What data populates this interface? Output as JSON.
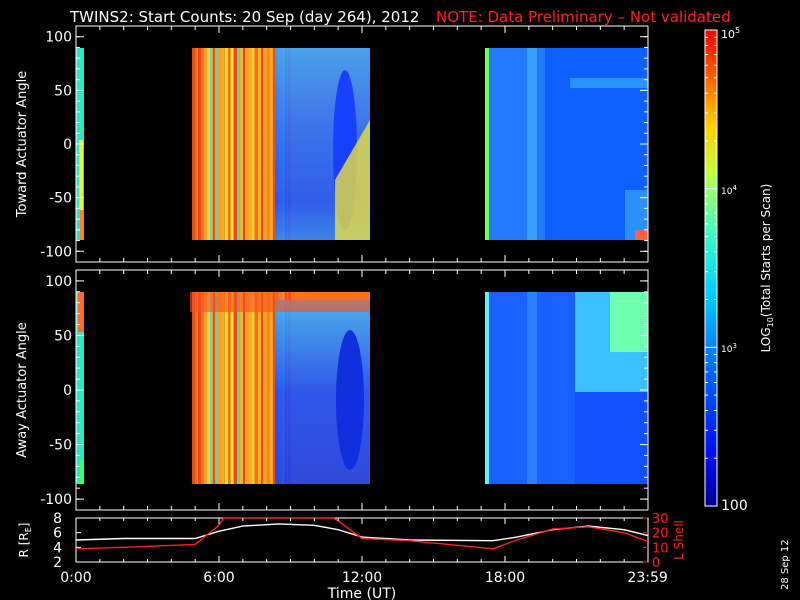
{
  "header": {
    "title": "TWINS2: Start Counts: 20 Sep (day 264), 2012",
    "note": "NOTE: Data Preliminary – Not validated",
    "note_color": "#ff2020"
  },
  "side_date": "28 Sep 12",
  "chart_data": [
    {
      "type": "heatmap",
      "panel": "top",
      "ylabel": "Toward Actuator Angle",
      "ylim": [
        -110,
        110
      ],
      "yticks": [
        "100",
        "50",
        "0",
        "-50",
        "-100"
      ],
      "xlim_hours": [
        0,
        24
      ],
      "data_intervals_hours": [
        [
          -0.2,
          0.35
        ],
        [
          4.8,
          12.7
        ],
        [
          17.7,
          24.0
        ]
      ]
    },
    {
      "type": "heatmap",
      "panel": "middle",
      "ylabel": "Away Actuator Angle",
      "ylim": [
        -110,
        110
      ],
      "yticks": [
        "100",
        "50",
        "0",
        "-50",
        "-100"
      ],
      "xlim_hours": [
        0,
        24
      ],
      "data_intervals_hours": [
        [
          -0.2,
          0.35
        ],
        [
          4.8,
          12.7
        ],
        [
          17.7,
          24.0
        ]
      ]
    },
    {
      "type": "line",
      "panel": "orbit",
      "ylabel_left": "R [R",
      "ylabel_left_sub": "E",
      "ylabel_left_close": "]",
      "ylabel_right": "L Shell",
      "left_ylim": [
        2,
        8
      ],
      "left_yticks": [
        "8",
        "6",
        "4",
        "2"
      ],
      "right_ylim": [
        0,
        30
      ],
      "right_yticks": [
        "30",
        "20",
        "10",
        "0"
      ],
      "series": [
        {
          "color": "#ffffff",
          "x": [
            0,
            2,
            5,
            6,
            7,
            8.5,
            10,
            11,
            12,
            14,
            17.5,
            18.5,
            20,
            21.5,
            23,
            24
          ],
          "values": [
            5.0,
            5.2,
            5.2,
            6.2,
            6.9,
            7.2,
            7.0,
            6.4,
            5.4,
            5.0,
            4.9,
            5.4,
            6.4,
            6.9,
            6.4,
            5.6
          ]
        },
        {
          "color": "#ff2020",
          "x": [
            0,
            2,
            5,
            6,
            6.2,
            10.8,
            11,
            12,
            14,
            17.5,
            18.5,
            20,
            21.5,
            23,
            24
          ],
          "values": [
            3.8,
            4.0,
            4.4,
            7.0,
            8.3,
            8.3,
            7.6,
            5.2,
            4.9,
            3.8,
            5.0,
            6.5,
            6.8,
            6.0,
            4.8
          ]
        }
      ]
    }
  ],
  "x_axis": {
    "ticks": [
      {
        "label": "0:00",
        "hour": 0
      },
      {
        "label": "6:00",
        "hour": 6
      },
      {
        "label": "12:00",
        "hour": 12
      },
      {
        "label": "18:00",
        "hour": 18
      },
      {
        "label": "23:59",
        "hour": 23.983
      }
    ],
    "label": "Time (UT)"
  },
  "colorbar": {
    "scale": "log",
    "range": [
      100,
      100000
    ],
    "labels": {
      "top": "10",
      "top_exp": "5",
      "mid_upper": "10",
      "mid_upper_exp": "4",
      "mid_lower": "10",
      "mid_lower_exp": "3",
      "bottom": "100"
    },
    "title_a": "LOG",
    "title_sub": "10",
    "title_b": "(Total Starts per Scan)"
  }
}
